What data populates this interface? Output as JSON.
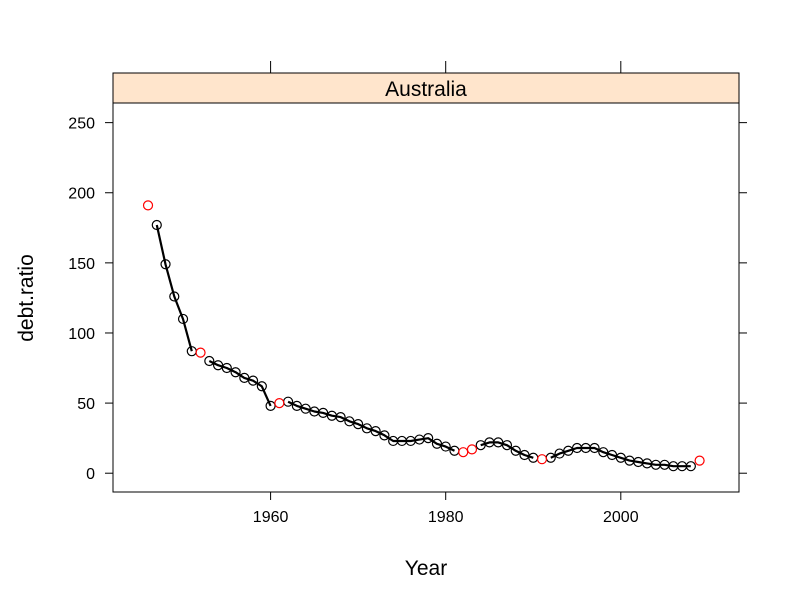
{
  "chart_data": {
    "type": "scatter",
    "strip_title": "Australia",
    "xlabel": "Year",
    "ylabel": "debt.ratio",
    "xlim": [
      1942,
      2013.5
    ],
    "ylim": [
      -13.4,
      264
    ],
    "x_ticks": [
      1960,
      1980,
      2000
    ],
    "y_ticks": [
      0,
      50,
      100,
      150,
      200,
      250
    ],
    "grid": false,
    "colors": {
      "line": "#000000",
      "black_point": "#000000",
      "red_point": "#ff0000",
      "strip_fill": "#ffe5cc"
    },
    "black_points": [
      {
        "x": 1947,
        "y": 177
      },
      {
        "x": 1948,
        "y": 149
      },
      {
        "x": 1949,
        "y": 126
      },
      {
        "x": 1950,
        "y": 110
      },
      {
        "x": 1951,
        "y": 87
      },
      {
        "x": 1953,
        "y": 80
      },
      {
        "x": 1954,
        "y": 77
      },
      {
        "x": 1955,
        "y": 75
      },
      {
        "x": 1956,
        "y": 72
      },
      {
        "x": 1957,
        "y": 68
      },
      {
        "x": 1958,
        "y": 66
      },
      {
        "x": 1959,
        "y": 62
      },
      {
        "x": 1960,
        "y": 48
      },
      {
        "x": 1962,
        "y": 51
      },
      {
        "x": 1963,
        "y": 48
      },
      {
        "x": 1964,
        "y": 46
      },
      {
        "x": 1965,
        "y": 44
      },
      {
        "x": 1966,
        "y": 43
      },
      {
        "x": 1967,
        "y": 41
      },
      {
        "x": 1968,
        "y": 40
      },
      {
        "x": 1969,
        "y": 37
      },
      {
        "x": 1970,
        "y": 35
      },
      {
        "x": 1971,
        "y": 32
      },
      {
        "x": 1972,
        "y": 30
      },
      {
        "x": 1973,
        "y": 27
      },
      {
        "x": 1974,
        "y": 23
      },
      {
        "x": 1975,
        "y": 23
      },
      {
        "x": 1976,
        "y": 23
      },
      {
        "x": 1977,
        "y": 24
      },
      {
        "x": 1978,
        "y": 25
      },
      {
        "x": 1979,
        "y": 21
      },
      {
        "x": 1980,
        "y": 19
      },
      {
        "x": 1981,
        "y": 16
      },
      {
        "x": 1984,
        "y": 20
      },
      {
        "x": 1985,
        "y": 22
      },
      {
        "x": 1986,
        "y": 22
      },
      {
        "x": 1987,
        "y": 20
      },
      {
        "x": 1988,
        "y": 16
      },
      {
        "x": 1989,
        "y": 13
      },
      {
        "x": 1990,
        "y": 11
      },
      {
        "x": 1992,
        "y": 11
      },
      {
        "x": 1993,
        "y": 14
      },
      {
        "x": 1994,
        "y": 16
      },
      {
        "x": 1995,
        "y": 18
      },
      {
        "x": 1996,
        "y": 18
      },
      {
        "x": 1997,
        "y": 18
      },
      {
        "x": 1998,
        "y": 15
      },
      {
        "x": 1999,
        "y": 13
      },
      {
        "x": 2000,
        "y": 11
      },
      {
        "x": 2001,
        "y": 9
      },
      {
        "x": 2002,
        "y": 8
      },
      {
        "x": 2003,
        "y": 7
      },
      {
        "x": 2004,
        "y": 6
      },
      {
        "x": 2005,
        "y": 6
      },
      {
        "x": 2006,
        "y": 5
      },
      {
        "x": 2007,
        "y": 5
      },
      {
        "x": 2008,
        "y": 5
      }
    ],
    "red_points": [
      {
        "x": 1946,
        "y": 191
      },
      {
        "x": 1952,
        "y": 86
      },
      {
        "x": 1961,
        "y": 50
      },
      {
        "x": 1982,
        "y": 15
      },
      {
        "x": 1983,
        "y": 17
      },
      {
        "x": 1991,
        "y": 10
      },
      {
        "x": 2009,
        "y": 9
      }
    ],
    "line_segments": [
      [
        1947,
        1948,
        1949,
        1950,
        1951
      ],
      [
        1953,
        1954,
        1955,
        1956,
        1957,
        1958,
        1959,
        1960
      ],
      [
        1962,
        1963,
        1964,
        1965,
        1966,
        1967,
        1968,
        1969,
        1970,
        1971,
        1972,
        1973,
        1974,
        1975,
        1976,
        1977,
        1978,
        1979,
        1980,
        1981
      ],
      [
        1984,
        1985,
        1986,
        1987,
        1988,
        1989,
        1990
      ],
      [
        1992,
        1993,
        1994,
        1995,
        1996,
        1997,
        1998,
        1999,
        2000,
        2001,
        2002,
        2003,
        2004,
        2005,
        2006,
        2007,
        2008
      ]
    ]
  }
}
